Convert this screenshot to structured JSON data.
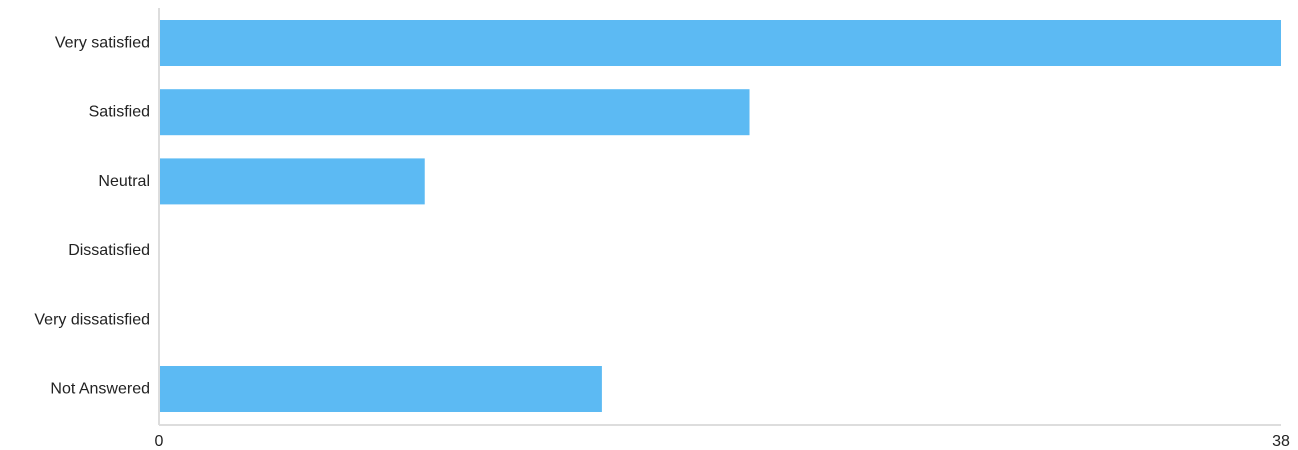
{
  "chart_data": {
    "type": "bar",
    "orientation": "horizontal",
    "categories": [
      "Very satisfied",
      "Satisfied",
      "Neutral",
      "Dissatisfied",
      "Very dissatisfied",
      "Not Answered"
    ],
    "values": [
      38,
      20,
      9,
      0,
      0,
      15
    ],
    "xlim": [
      0,
      38
    ],
    "x_ticks": [
      "0",
      "38"
    ],
    "grid": false,
    "legend": "none",
    "colors": {
      "bar": "#5cbaf3",
      "axis": "#dddddd",
      "text": "#222222"
    }
  }
}
